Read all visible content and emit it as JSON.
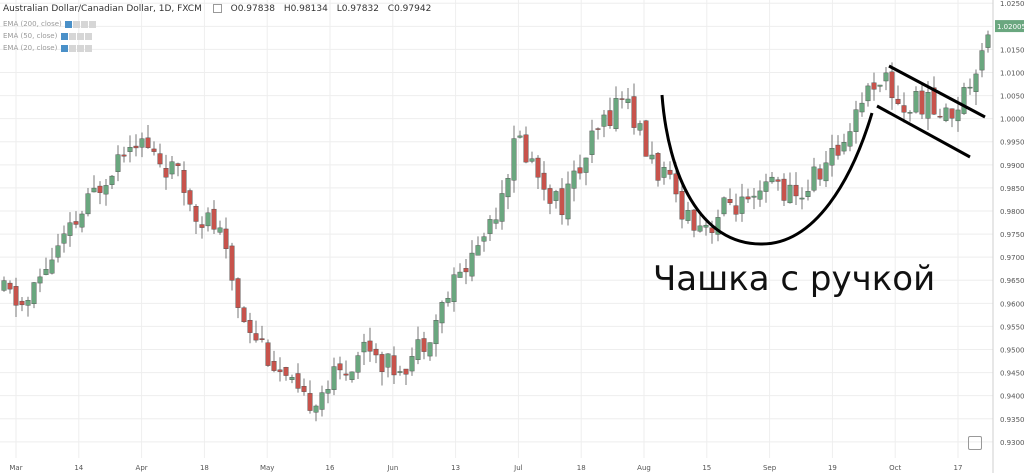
{
  "header": {
    "symbol": "Australian Dollar/Canadian Dollar, 1D, FXCM",
    "open": "O0.97838",
    "high": "H0.98134",
    "low": "L0.97832",
    "close": "C0.97942"
  },
  "indicators": [
    {
      "label": "EMA (200, close)",
      "icon": "eye-icon"
    },
    {
      "label": "EMA (50, close)",
      "icon": "eye-icon"
    },
    {
      "label": "EMA (20, close)",
      "icon": "eye-icon"
    }
  ],
  "annotation": {
    "caption": "Чашка с ручкой",
    "cup": "curved-arc",
    "handle": "parallel-downward-lines"
  },
  "colors": {
    "up": "#6aa77f",
    "down": "#c7534c",
    "grid": "#eeeeee",
    "last_price_bg": "#6aa77f",
    "annotation": "#000000"
  },
  "chart_data": {
    "type": "candlestick",
    "title": "Australian Dollar/Canadian Dollar, 1D, FXCM",
    "ylim": [
      0.9265,
      1.0257
    ],
    "y_ticks": [
      "1.02500",
      "1.02000",
      "1.01500",
      "1.01000",
      "1.00500",
      "1.00000",
      "0.99500",
      "0.99000",
      "0.98500",
      "0.98000",
      "0.97500",
      "0.97000",
      "0.96500",
      "0.96000",
      "0.95500",
      "0.95000",
      "0.94500",
      "0.94000",
      "0.93500",
      "0.93000"
    ],
    "x_ticks": [
      "Mar",
      "14",
      "Apr",
      "18",
      "May",
      "16",
      "Jun",
      "13",
      "Jul",
      "18",
      "Aug",
      "15",
      "Sep",
      "19",
      "Oct",
      "17"
    ],
    "last_price": "1.02005",
    "grid": true,
    "series": [
      {
        "name": "",
        "path": [
          0.9625,
          0.959,
          0.9685,
          0.9745,
          0.982,
          0.99,
          0.997,
          0.992,
          0.988,
          0.98,
          0.976,
          0.959,
          0.952,
          0.944,
          0.938,
          0.942,
          0.946,
          0.952,
          0.946,
          0.948,
          0.955,
          0.964,
          0.971,
          0.981,
          0.996,
          0.988,
          0.981,
          0.99,
          0.999,
          1.006,
          0.993,
          0.986,
          0.979,
          0.977,
          0.982,
          0.98,
          0.987,
          0.982,
          0.988,
          0.993,
          1.004,
          1.01,
          1.002,
          1.004,
          1.0,
          1.006,
          1.02
        ]
      }
    ]
  }
}
